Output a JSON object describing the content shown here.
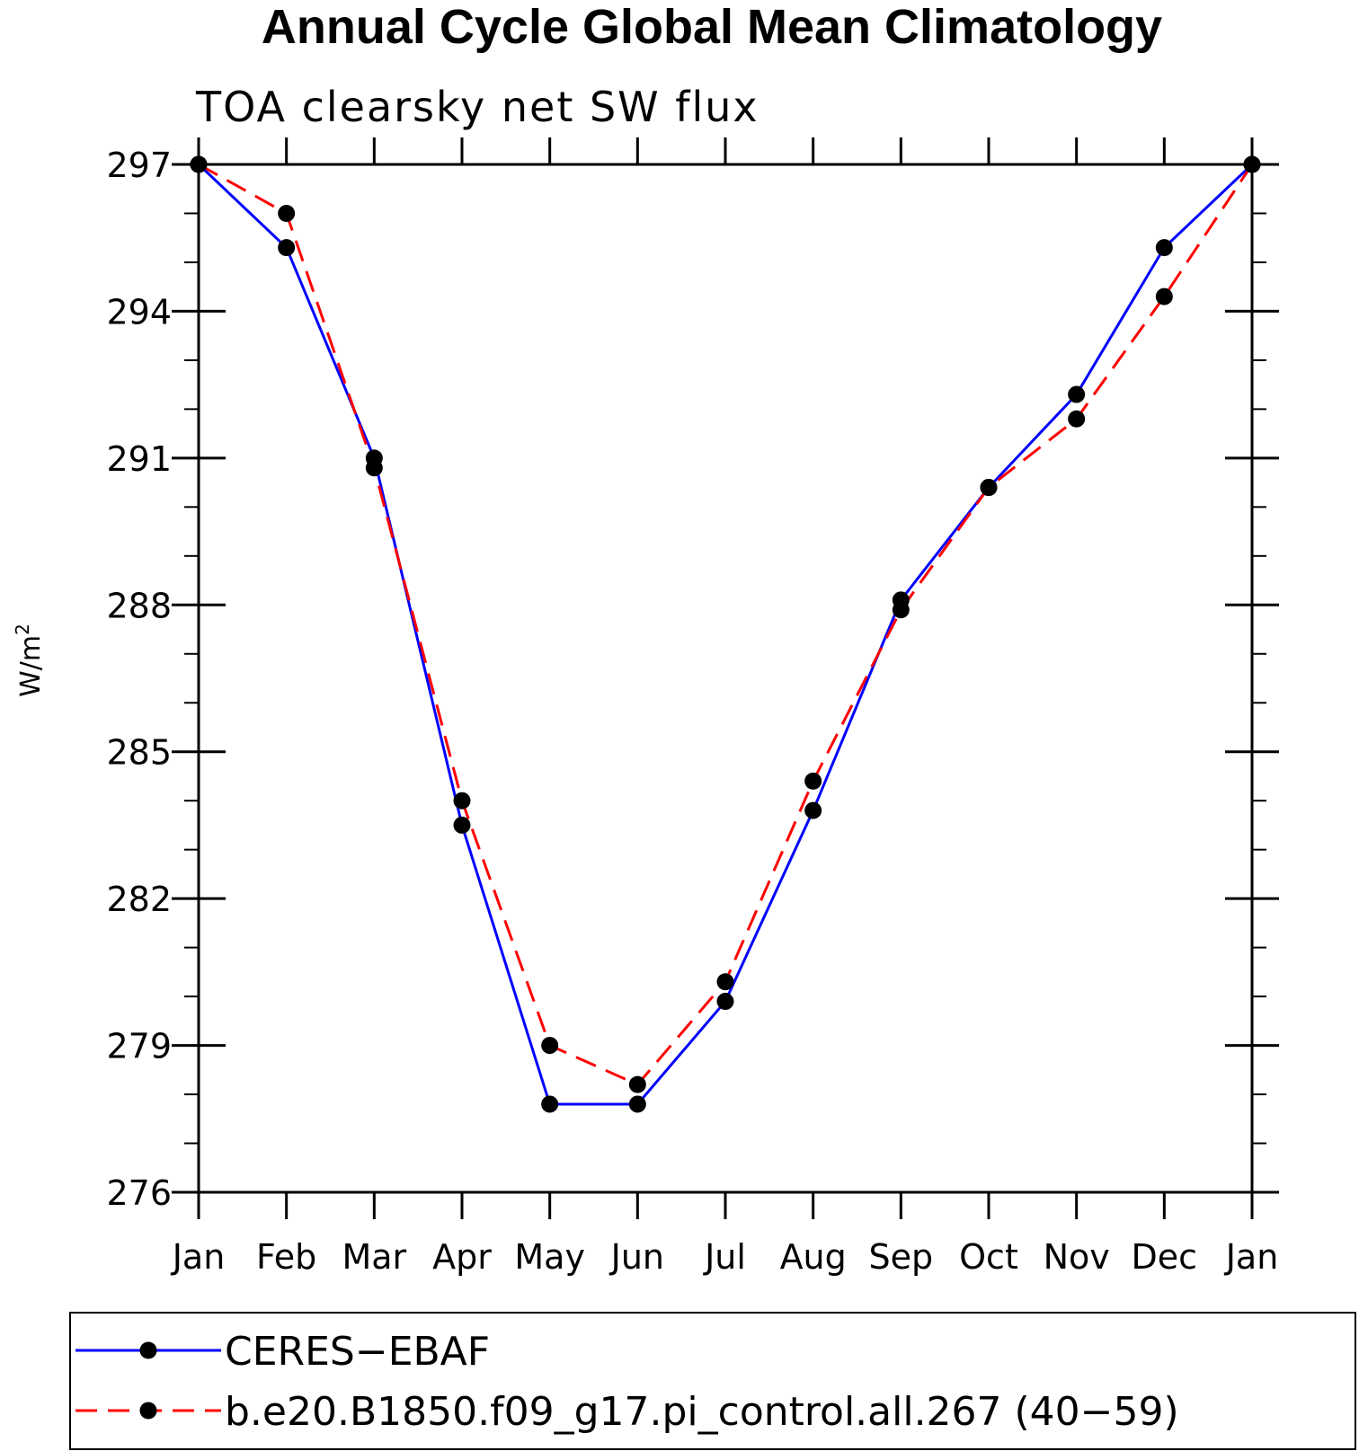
{
  "chart_data": {
    "type": "line",
    "title": "Annual Cycle Global Mean Climatology",
    "subtitle": "TOA clearsky net SW flux",
    "ylabel": "W/m",
    "ylabel_sup": "2",
    "xlabel": "",
    "categories": [
      "Jan",
      "Feb",
      "Mar",
      "Apr",
      "May",
      "Jun",
      "Jul",
      "Aug",
      "Sep",
      "Oct",
      "Nov",
      "Dec",
      "Jan"
    ],
    "ylim": [
      276,
      297
    ],
    "yticks": [
      276,
      279,
      282,
      285,
      288,
      291,
      294,
      297
    ],
    "y_minor_step": 1,
    "grid": false,
    "legend_position": "bottom",
    "series": [
      {
        "name": "CERES−EBAF",
        "color": "#0000ff",
        "dash": "solid",
        "marker": "filled-circle",
        "values": [
          297.0,
          295.3,
          291.0,
          283.5,
          277.8,
          277.8,
          279.9,
          283.8,
          288.1,
          290.4,
          292.3,
          295.3,
          297.0
        ]
      },
      {
        "name": "b.e20.B1850.f09_g17.pi_control.all.267 (40−59)",
        "color": "#ff0000",
        "dash": "dashed",
        "marker": "filled-circle",
        "values": [
          297.0,
          296.0,
          290.8,
          284.0,
          279.0,
          278.2,
          280.3,
          284.4,
          287.9,
          290.4,
          291.8,
          294.3,
          297.0
        ]
      }
    ]
  }
}
